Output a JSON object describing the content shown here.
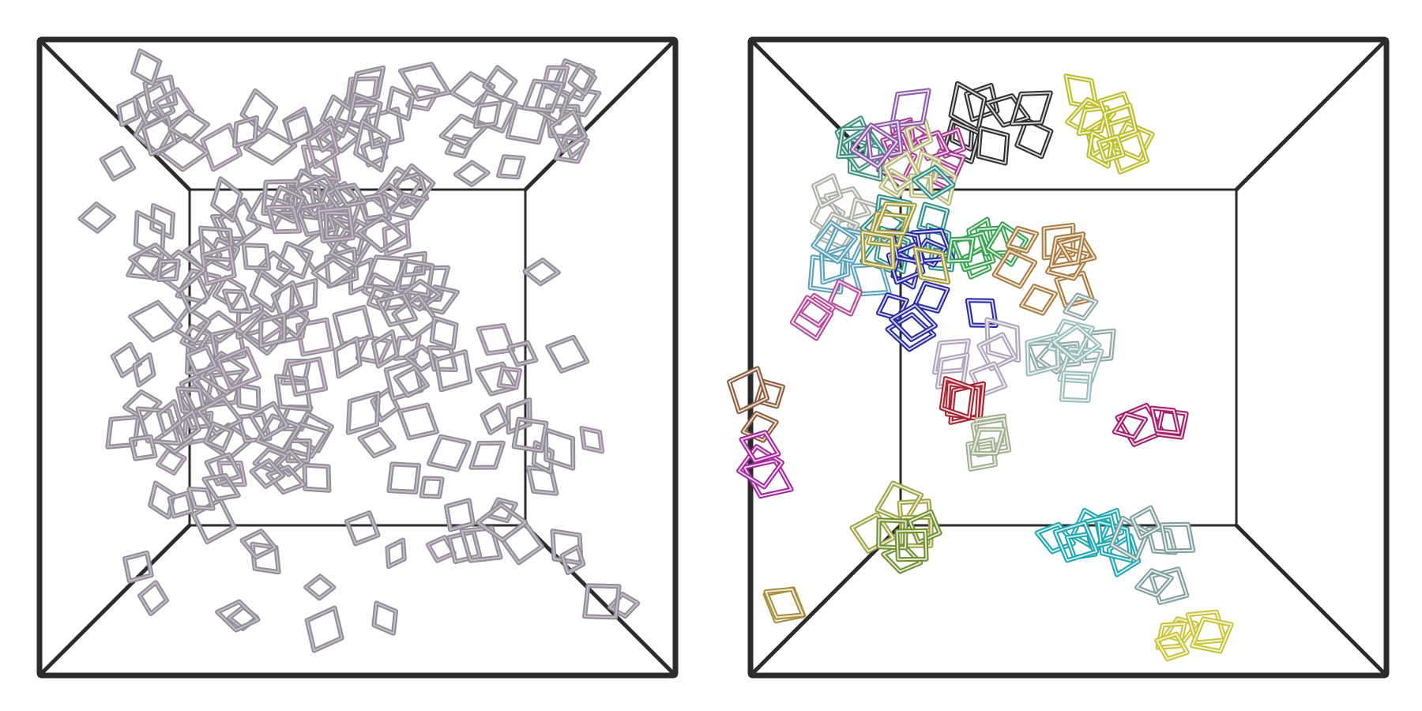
{
  "panels": [
    {
      "id": "left",
      "coloring": "uniform",
      "colors": {
        "squares": "#8f8f95",
        "highlight": "#d6c2d9",
        "box": "#2b2b2b"
      },
      "square_count": 230
    },
    {
      "id": "right",
      "coloring": "by-cluster",
      "colors": {
        "box": "#2b2b2b",
        "clusters": [
          "#2f2f2f",
          "#a83a8f",
          "#bdbd2c",
          "#3f8f7f",
          "#b7b97a",
          "#8d5aa8",
          "#a9b0a3",
          "#2f8f88",
          "#5aa0b8",
          "#2a2aa0",
          "#a59a3a",
          "#3aa052",
          "#b44c98",
          "#a97b3f",
          "#8fa6a6",
          "#b0a2bb",
          "#a3242e",
          "#a0b08e",
          "#a01f6a",
          "#8c5b3a",
          "#a3269c",
          "#9fa344",
          "#6f8f2f",
          "#a78f3f",
          "#1fa6ad",
          "#7f9f9f",
          "#9bbcbc",
          "#c9c43a"
        ]
      }
    }
  ]
}
